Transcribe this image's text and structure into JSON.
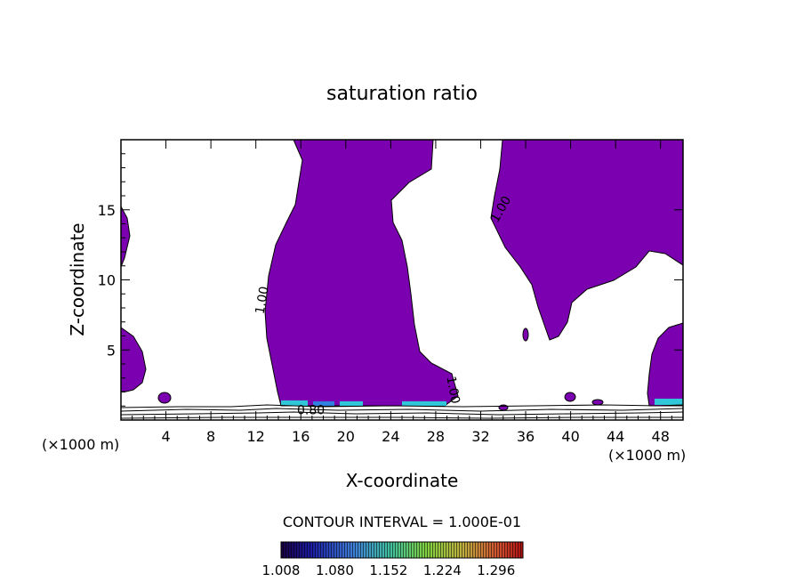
{
  "chart_data": {
    "type": "contour",
    "title": "saturation ratio",
    "xlabel": "X-coordinate",
    "ylabel": "Z-coordinate",
    "x_unit_label": "(×1000 m)",
    "x_unit_label_right": "(×1000 m)",
    "xlim": [
      0,
      50
    ],
    "ylim": [
      0,
      20
    ],
    "x_ticks": [
      4,
      8,
      12,
      16,
      20,
      24,
      28,
      32,
      36,
      40,
      44,
      48
    ],
    "y_ticks": [
      5,
      10,
      15
    ],
    "contour_labels": [
      {
        "text": "1.00",
        "x": 12.9,
        "z": 8.5,
        "angle": -80
      },
      {
        "text": "1.00",
        "x": 34.1,
        "z": 14.9,
        "angle": -60
      },
      {
        "text": "1.00",
        "x": 29.2,
        "z": 2.1,
        "angle": 80
      },
      {
        "text": "0.80",
        "x": 16.9,
        "z": 0.4,
        "angle": 0
      }
    ],
    "contour_interval_text": "CONTOUR INTERVAL = 1.000E-01",
    "colorbar": {
      "min": 1.008,
      "max": 1.332,
      "tick_labels": [
        "1.008",
        "1.080",
        "1.152",
        "1.224",
        "1.296"
      ],
      "tick_values": [
        1.008,
        1.08,
        1.152,
        1.224,
        1.296
      ]
    },
    "fill_color": "#7b00b0",
    "grid": false
  }
}
